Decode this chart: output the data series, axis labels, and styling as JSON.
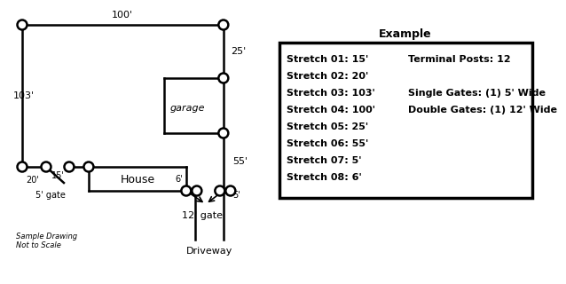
{
  "title": "Example",
  "stretches": [
    "Stretch 01: 15'",
    "Stretch 02: 20'",
    "Stretch 03: 103'",
    "Stretch 04: 100'",
    "Stretch 05: 25'",
    "Stretch 06: 55'",
    "Stretch 07: 5'",
    "Stretch 08: 6'"
  ],
  "right_col_1": "Terminal Posts: 12",
  "right_col_3": "Single Gates: (1) 5' Wide",
  "right_col_4": "Double Gates: (1) 12' Wide",
  "bg_color": "#ffffff",
  "line_color": "#000000",
  "label_fontsize": 8,
  "title_fontsize": 9
}
